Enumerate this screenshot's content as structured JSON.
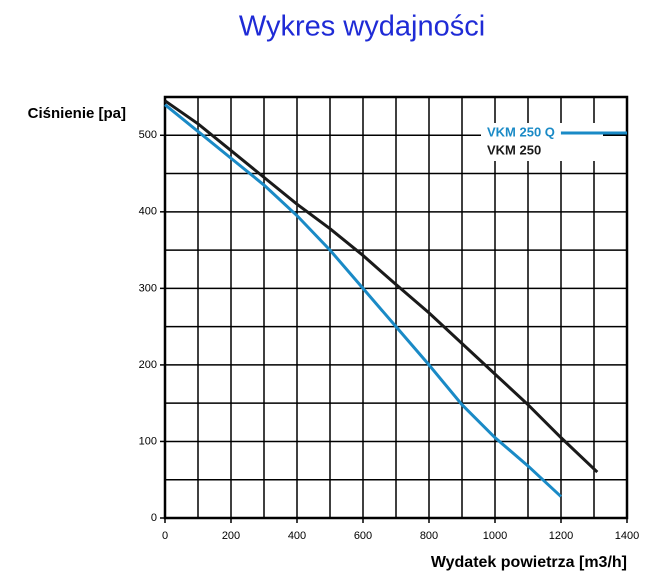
{
  "chart_data": {
    "type": "line",
    "title": "Wykres wydajności",
    "xlabel": "Wydatek powietrza [m3/h]",
    "ylabel": "Ciśnienie [pa]",
    "xlim": [
      0,
      1400
    ],
    "xticks": [
      0,
      200,
      400,
      600,
      800,
      1000,
      1200,
      1400
    ],
    "ylim": [
      0,
      550
    ],
    "yticks": [
      0,
      100,
      200,
      300,
      400,
      500
    ],
    "grid": true,
    "legend": "upper right",
    "series": [
      {
        "name": "VKM 250 Q",
        "color": "#1a8ac6",
        "x": [
          0,
          100,
          200,
          300,
          400,
          500,
          600,
          700,
          800,
          900,
          1000,
          1100,
          1200
        ],
        "values": [
          540,
          505,
          470,
          435,
          395,
          350,
          300,
          250,
          200,
          148,
          105,
          68,
          28
        ]
      },
      {
        "name": "VKM 250",
        "color": "#1a1a1a",
        "x": [
          0,
          100,
          200,
          300,
          400,
          500,
          600,
          700,
          800,
          900,
          1000,
          1100,
          1200,
          1310
        ],
        "values": [
          545,
          515,
          480,
          445,
          410,
          378,
          343,
          305,
          268,
          228,
          188,
          148,
          105,
          60
        ]
      }
    ]
  }
}
